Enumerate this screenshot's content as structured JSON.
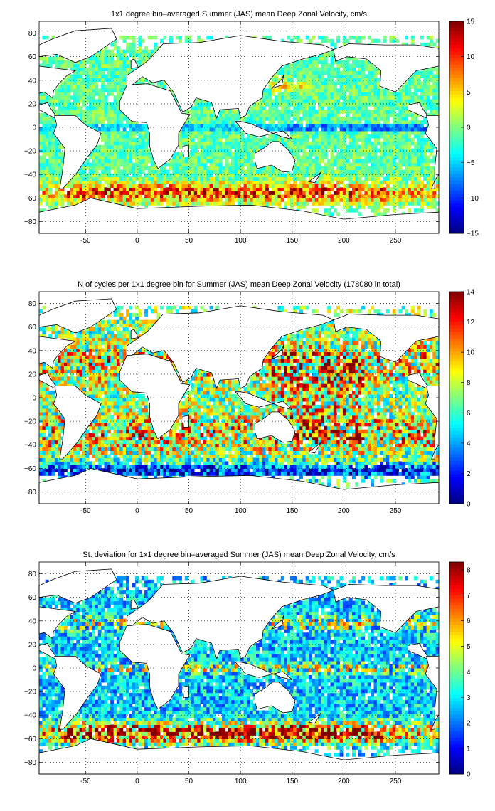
{
  "chart_data": [
    {
      "type": "heatmap",
      "title": "1x1 degree bin–averaged Summer (JAS) mean Deep Zonal Velocity, cm/s",
      "x_ticks": [
        "-50",
        "0",
        "50",
        "100",
        "150",
        "200",
        "250"
      ],
      "x_tick_values": [
        -50,
        0,
        50,
        100,
        150,
        200,
        250
      ],
      "y_ticks": [
        "80",
        "60",
        "40",
        "20",
        "0",
        "−20",
        "−40",
        "−60",
        "−80"
      ],
      "y_tick_values": [
        80,
        60,
        40,
        20,
        0,
        -20,
        -40,
        -60,
        -80
      ],
      "xlim": [
        -95,
        292
      ],
      "ylim": [
        -90,
        90
      ],
      "colorbar_ticks": [
        "15",
        "10",
        "5",
        "0",
        "−5",
        "−10",
        "−15"
      ],
      "colorbar_tick_values": [
        15,
        10,
        5,
        0,
        -5,
        -10,
        -15
      ],
      "color_range": [
        -15,
        15
      ],
      "colormap": "jet",
      "grid": true,
      "field": "velocity"
    },
    {
      "type": "heatmap",
      "title": "N of cycles per 1x1 degree bin for Summer (JAS) mean Deep Zonal Velocity (178080 in total)",
      "x_ticks": [
        "-50",
        "0",
        "50",
        "100",
        "150",
        "200",
        "250"
      ],
      "x_tick_values": [
        -50,
        0,
        50,
        100,
        150,
        200,
        250
      ],
      "y_ticks": [
        "80",
        "60",
        "40",
        "20",
        "0",
        "−20",
        "−40",
        "−60",
        "−80"
      ],
      "y_tick_values": [
        80,
        60,
        40,
        20,
        0,
        -20,
        -40,
        -60,
        -80
      ],
      "xlim": [
        -95,
        292
      ],
      "ylim": [
        -90,
        90
      ],
      "colorbar_ticks": [
        "14",
        "12",
        "10",
        "8",
        "6",
        "4",
        "2",
        "0"
      ],
      "colorbar_tick_values": [
        14,
        12,
        10,
        8,
        6,
        4,
        2,
        0
      ],
      "color_range": [
        0,
        14
      ],
      "colormap": "jet",
      "grid": true,
      "field": "count"
    },
    {
      "type": "heatmap",
      "title": "St. deviation for 1x1 degree bin–averaged Summer (JAS) mean Deep Zonal Velocity, cm/s",
      "x_ticks": [
        "-50",
        "0",
        "50",
        "100",
        "150",
        "200",
        "250"
      ],
      "x_tick_values": [
        -50,
        0,
        50,
        100,
        150,
        200,
        250
      ],
      "y_ticks": [
        "80",
        "60",
        "40",
        "20",
        "0",
        "−20",
        "−40",
        "−60",
        "−80"
      ],
      "y_tick_values": [
        80,
        60,
        40,
        20,
        0,
        -20,
        -40,
        -60,
        -80
      ],
      "xlim": [
        -95,
        292
      ],
      "ylim": [
        -90,
        90
      ],
      "colorbar_ticks": [
        "8",
        "7",
        "6",
        "5",
        "4",
        "3",
        "2",
        "1",
        "0"
      ],
      "colorbar_tick_values": [
        8,
        7,
        6,
        5,
        4,
        3,
        2,
        1,
        0
      ],
      "color_range": [
        0,
        8.3
      ],
      "colormap": "jet",
      "grid": true,
      "field": "stdev"
    }
  ]
}
